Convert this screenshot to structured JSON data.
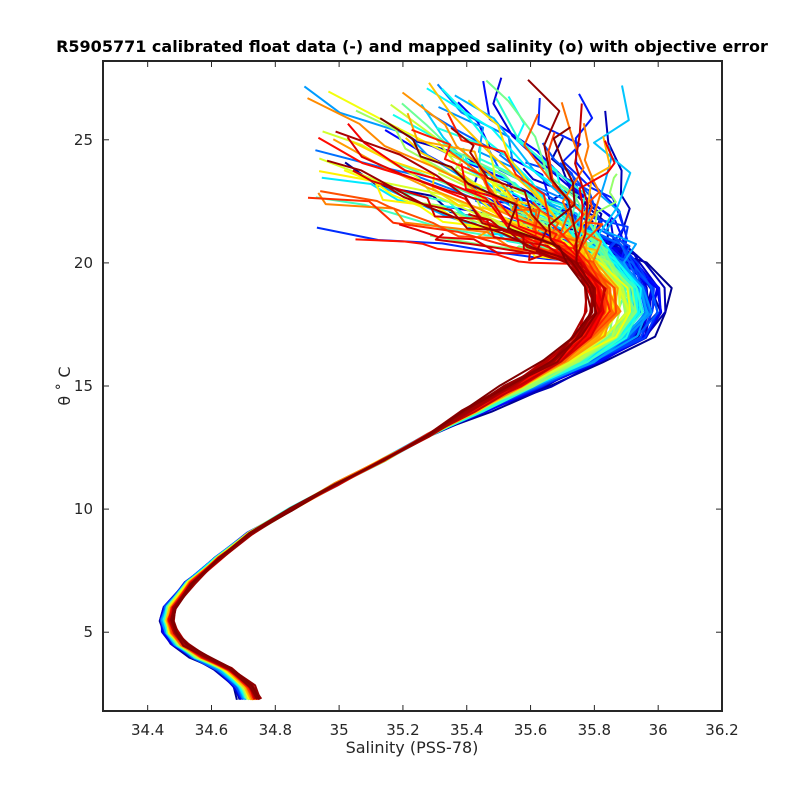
{
  "chart_data": {
    "type": "line",
    "title": "R5905771 calibrated float data (-) and mapped salinity (o) with objective error",
    "xlabel": "Salinity (PSS-78)",
    "ylabel": "θ ˚ C",
    "xlim": [
      34.26,
      36.2
    ],
    "ylim": [
      1.8,
      28.2
    ],
    "xticks": [
      "34.4",
      "34.6",
      "34.8",
      "35",
      "35.2",
      "35.4",
      "35.6",
      "35.8",
      "36",
      "36.2"
    ],
    "yticks": [
      "5",
      "10",
      "15",
      "20",
      "25"
    ],
    "grid": false,
    "legend": "none",
    "colormap": "jet",
    "series_count": 120,
    "colormap_stops": [
      "#00008f",
      "#0000ff",
      "#0080ff",
      "#00ffff",
      "#80ff80",
      "#ffff00",
      "#ff8000",
      "#ff0000",
      "#800000"
    ],
    "profile_template": {
      "theta": [
        2.3,
        2.8,
        3.5,
        4.0,
        4.5,
        5.0,
        5.5,
        6.0,
        7.0,
        8.0,
        9.0,
        10.0,
        11.0,
        12.0,
        13.0,
        14.0,
        15.0,
        16.0,
        17.0,
        18.0,
        19.0,
        20.0,
        21.0,
        22.0,
        23.0
      ],
      "salinity": [
        34.72,
        34.7,
        34.64,
        34.56,
        34.5,
        34.47,
        34.46,
        34.47,
        34.53,
        34.62,
        34.72,
        34.85,
        34.99,
        35.14,
        35.28,
        35.42,
        35.55,
        35.67,
        35.76,
        35.81,
        35.8,
        35.74,
        35.62,
        35.48,
        35.3
      ]
    }
  }
}
